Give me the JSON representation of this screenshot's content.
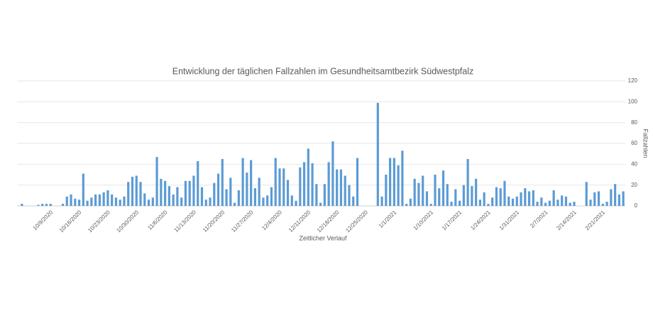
{
  "chart_data": {
    "type": "bar",
    "title": "Entwicklung der täglichen Fallzahlen im Gesundheitsamtbezirk Südwestpfalz",
    "x_label": "Zeitlicher Verlauf",
    "y_label": "Fallzahlen",
    "yaxis_side": "right",
    "color": "#5b9bd5",
    "grid": true,
    "ylim": [
      0,
      120
    ],
    "yticks": [
      0,
      20,
      40,
      60,
      80,
      100,
      120
    ],
    "categories": [
      null,
      null,
      null,
      null,
      null,
      null,
      null,
      "10/9/2020",
      null,
      null,
      null,
      null,
      null,
      null,
      "10/16/2020",
      null,
      null,
      null,
      null,
      null,
      null,
      "10/23/2020",
      null,
      null,
      null,
      null,
      null,
      null,
      "10/30/2020",
      null,
      null,
      null,
      null,
      null,
      null,
      "11/6/2020",
      null,
      null,
      null,
      null,
      null,
      null,
      "11/13/2020",
      null,
      null,
      null,
      null,
      null,
      null,
      "11/20/2020",
      null,
      null,
      null,
      null,
      null,
      null,
      "11/27/2020",
      null,
      null,
      null,
      null,
      null,
      null,
      "12/4/2020",
      null,
      null,
      null,
      null,
      null,
      null,
      "12/11/2020",
      null,
      null,
      null,
      null,
      null,
      null,
      "12/18/2020",
      null,
      null,
      null,
      null,
      null,
      null,
      "12/25/2020",
      null,
      null,
      null,
      null,
      null,
      null,
      "1/1/2021",
      null,
      null,
      null,
      null,
      null,
      null,
      null,
      null,
      "1/10/2021",
      null,
      null,
      null,
      null,
      null,
      null,
      "1/17/2021",
      null,
      null,
      null,
      null,
      null,
      null,
      "1/24/2021",
      null,
      null,
      null,
      null,
      null,
      null,
      "1/31/2021",
      null,
      null,
      null,
      null,
      null,
      null,
      "2/7/2021",
      null,
      null,
      null,
      null,
      null,
      null,
      "2/14/2021",
      null,
      null,
      null,
      null,
      null,
      null,
      "2/21/2021",
      null,
      null,
      null,
      null,
      null
    ],
    "values": [
      2,
      0,
      0,
      0,
      1,
      2,
      2,
      2,
      0,
      0,
      2,
      9,
      11,
      7,
      6,
      31,
      5,
      8,
      11,
      11,
      13,
      15,
      11,
      8,
      6,
      9,
      23,
      28,
      29,
      23,
      12,
      6,
      8,
      47,
      26,
      24,
      19,
      11,
      18,
      8,
      24,
      24,
      29,
      43,
      18,
      6,
      8,
      22,
      31,
      45,
      16,
      27,
      3,
      15,
      46,
      32,
      44,
      17,
      27,
      8,
      10,
      18,
      46,
      36,
      36,
      25,
      10,
      5,
      37,
      42,
      55,
      41,
      21,
      3,
      21,
      42,
      62,
      35,
      35,
      29,
      20,
      9,
      46,
      0,
      0,
      0,
      0,
      99,
      9,
      30,
      46,
      46,
      39,
      53,
      2,
      7,
      26,
      22,
      29,
      14,
      2,
      30,
      17,
      34,
      21,
      4,
      16,
      5,
      20,
      45,
      19,
      26,
      6,
      13,
      2,
      8,
      18,
      17,
      24,
      9,
      7,
      9,
      13,
      17,
      14,
      15,
      4,
      8,
      3,
      5,
      15,
      6,
      10,
      9,
      3,
      4,
      0,
      0,
      23,
      6,
      13,
      14,
      2,
      4,
      16,
      21,
      11,
      14
    ]
  }
}
